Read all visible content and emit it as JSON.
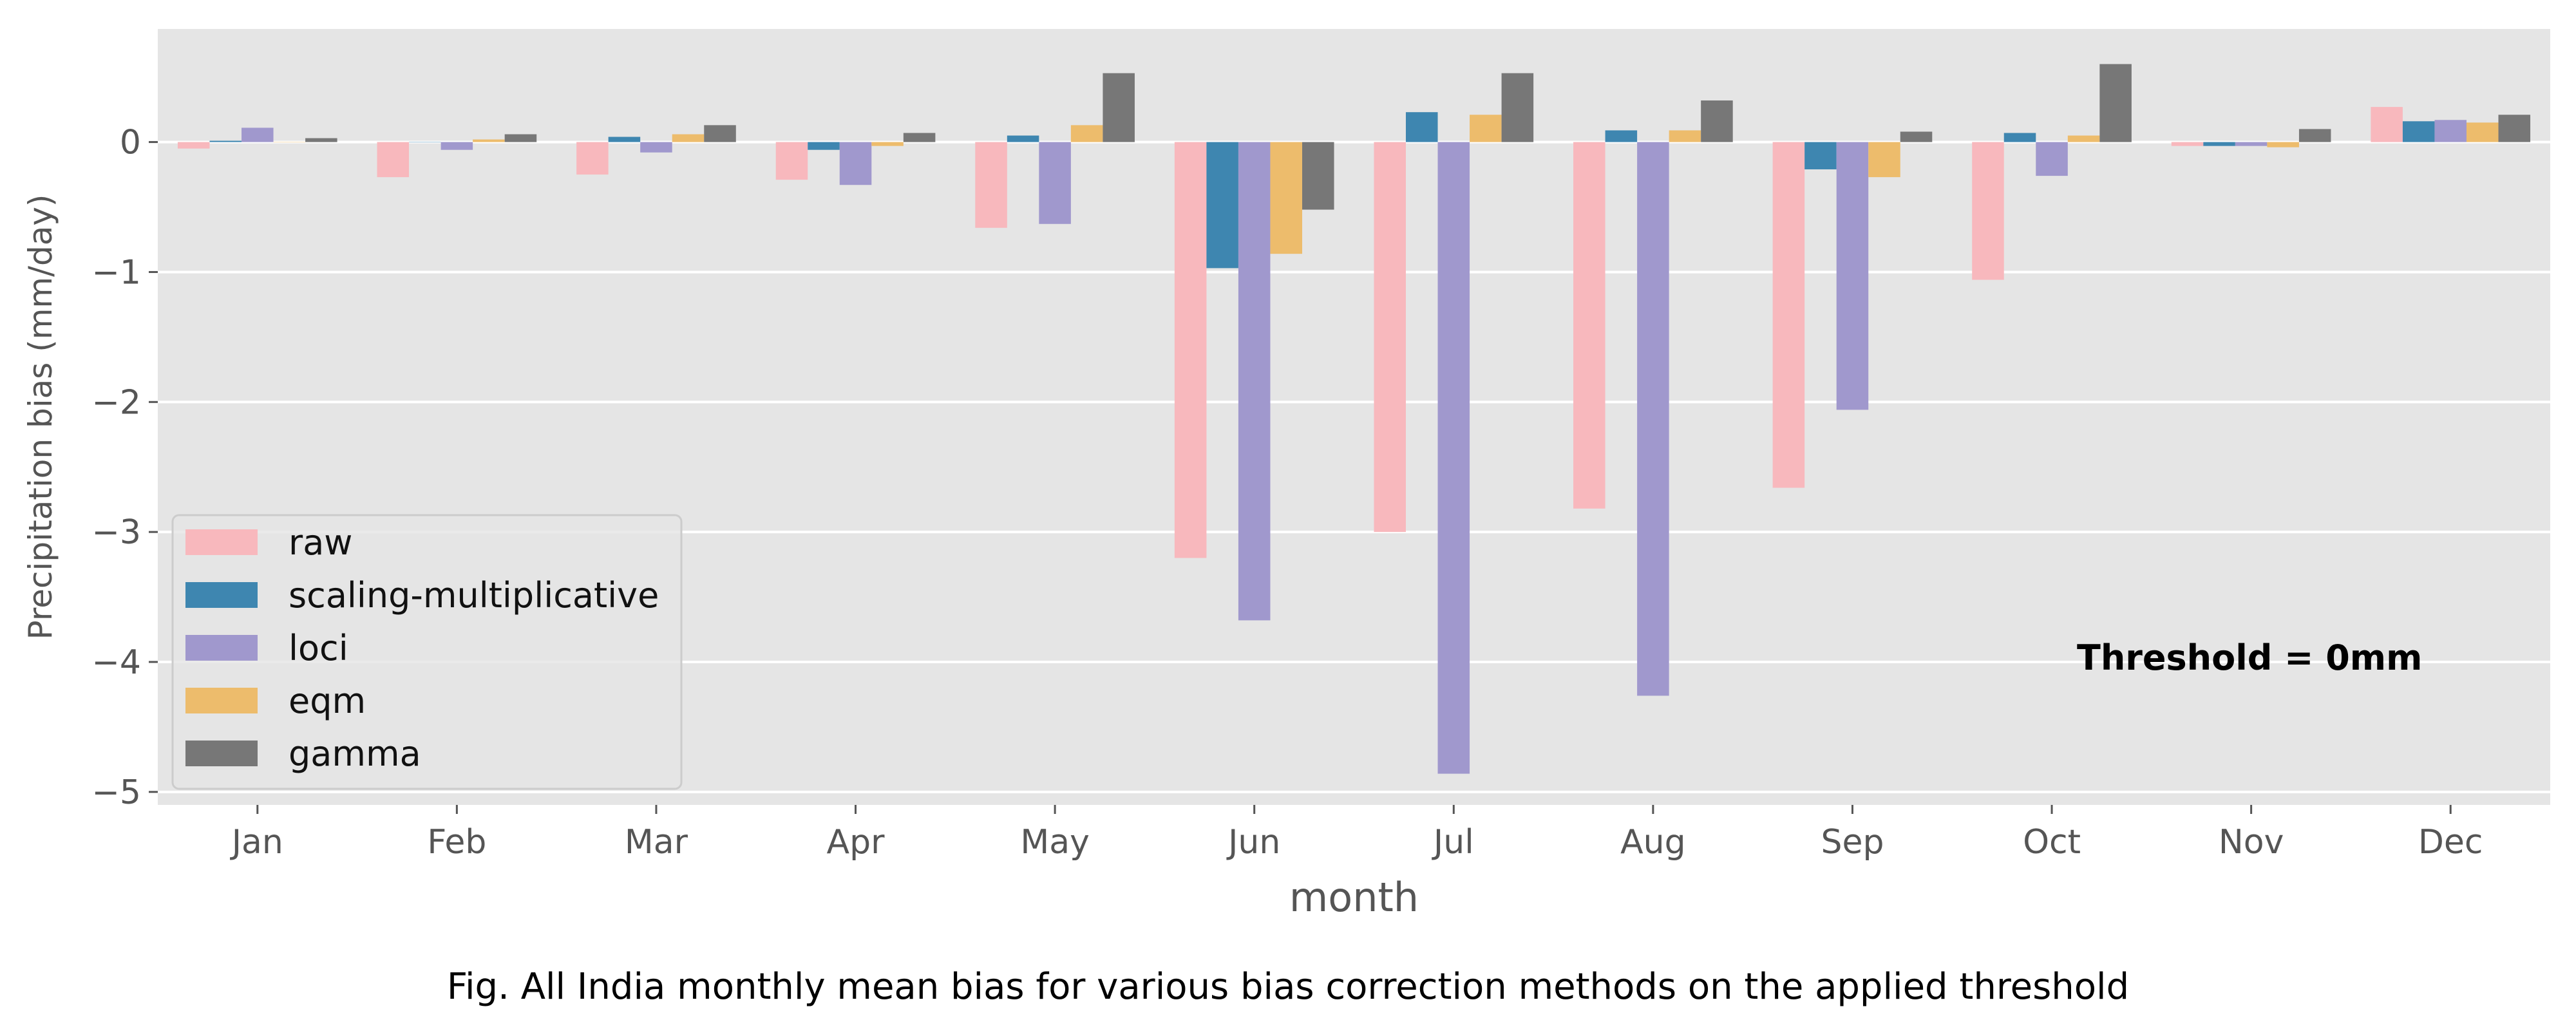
{
  "chart_data": {
    "type": "bar",
    "categories": [
      "Jan",
      "Feb",
      "Mar",
      "Apr",
      "May",
      "Jun",
      "Jul",
      "Aug",
      "Sep",
      "Oct",
      "Nov",
      "Dec"
    ],
    "xlabel": "month",
    "ylabel": "Precipitation bias (mm/day)",
    "ylim": [
      -5.1,
      0.87
    ],
    "yticks": [
      0,
      -1,
      -2,
      -3,
      -4,
      -5
    ],
    "ytick_labels": [
      "0",
      "−1",
      "−2",
      "−3",
      "−4",
      "−5"
    ],
    "grid": true,
    "legend_position": "lower-left",
    "annotation": "Threshold = 0mm",
    "series": [
      {
        "name": "raw",
        "color": "#F8B8BD",
        "values": [
          -0.05,
          -0.27,
          -0.25,
          -0.29,
          -0.66,
          -3.2,
          -3.0,
          -2.82,
          -2.66,
          -1.06,
          -0.03,
          0.27
        ]
      },
      {
        "name": "scaling-multiplicative",
        "color": "#3E86B0",
        "values": [
          0.01,
          0.0,
          0.04,
          -0.06,
          0.05,
          -0.97,
          0.23,
          0.09,
          -0.21,
          0.07,
          -0.03,
          0.16
        ]
      },
      {
        "name": "loci",
        "color": "#A098CD",
        "values": [
          0.11,
          -0.06,
          -0.08,
          -0.33,
          -0.63,
          -3.68,
          -4.86,
          -4.26,
          -2.06,
          -0.26,
          -0.03,
          0.17
        ]
      },
      {
        "name": "eqm",
        "color": "#EDBC6C",
        "values": [
          0.0,
          0.02,
          0.06,
          -0.03,
          0.13,
          -0.86,
          0.21,
          0.09,
          -0.27,
          0.05,
          -0.04,
          0.15
        ]
      },
      {
        "name": "gamma",
        "color": "#777777",
        "values": [
          0.03,
          0.06,
          0.13,
          0.07,
          0.53,
          -0.52,
          0.53,
          0.32,
          0.08,
          0.6,
          0.1,
          0.21
        ]
      }
    ]
  },
  "caption": "Fig. All India monthly mean bias for various bias correction methods on the applied threshold",
  "colors": {
    "plot_background": "#E5E5E5",
    "grid": "#FFFFFF",
    "tick_text": "#555555"
  }
}
